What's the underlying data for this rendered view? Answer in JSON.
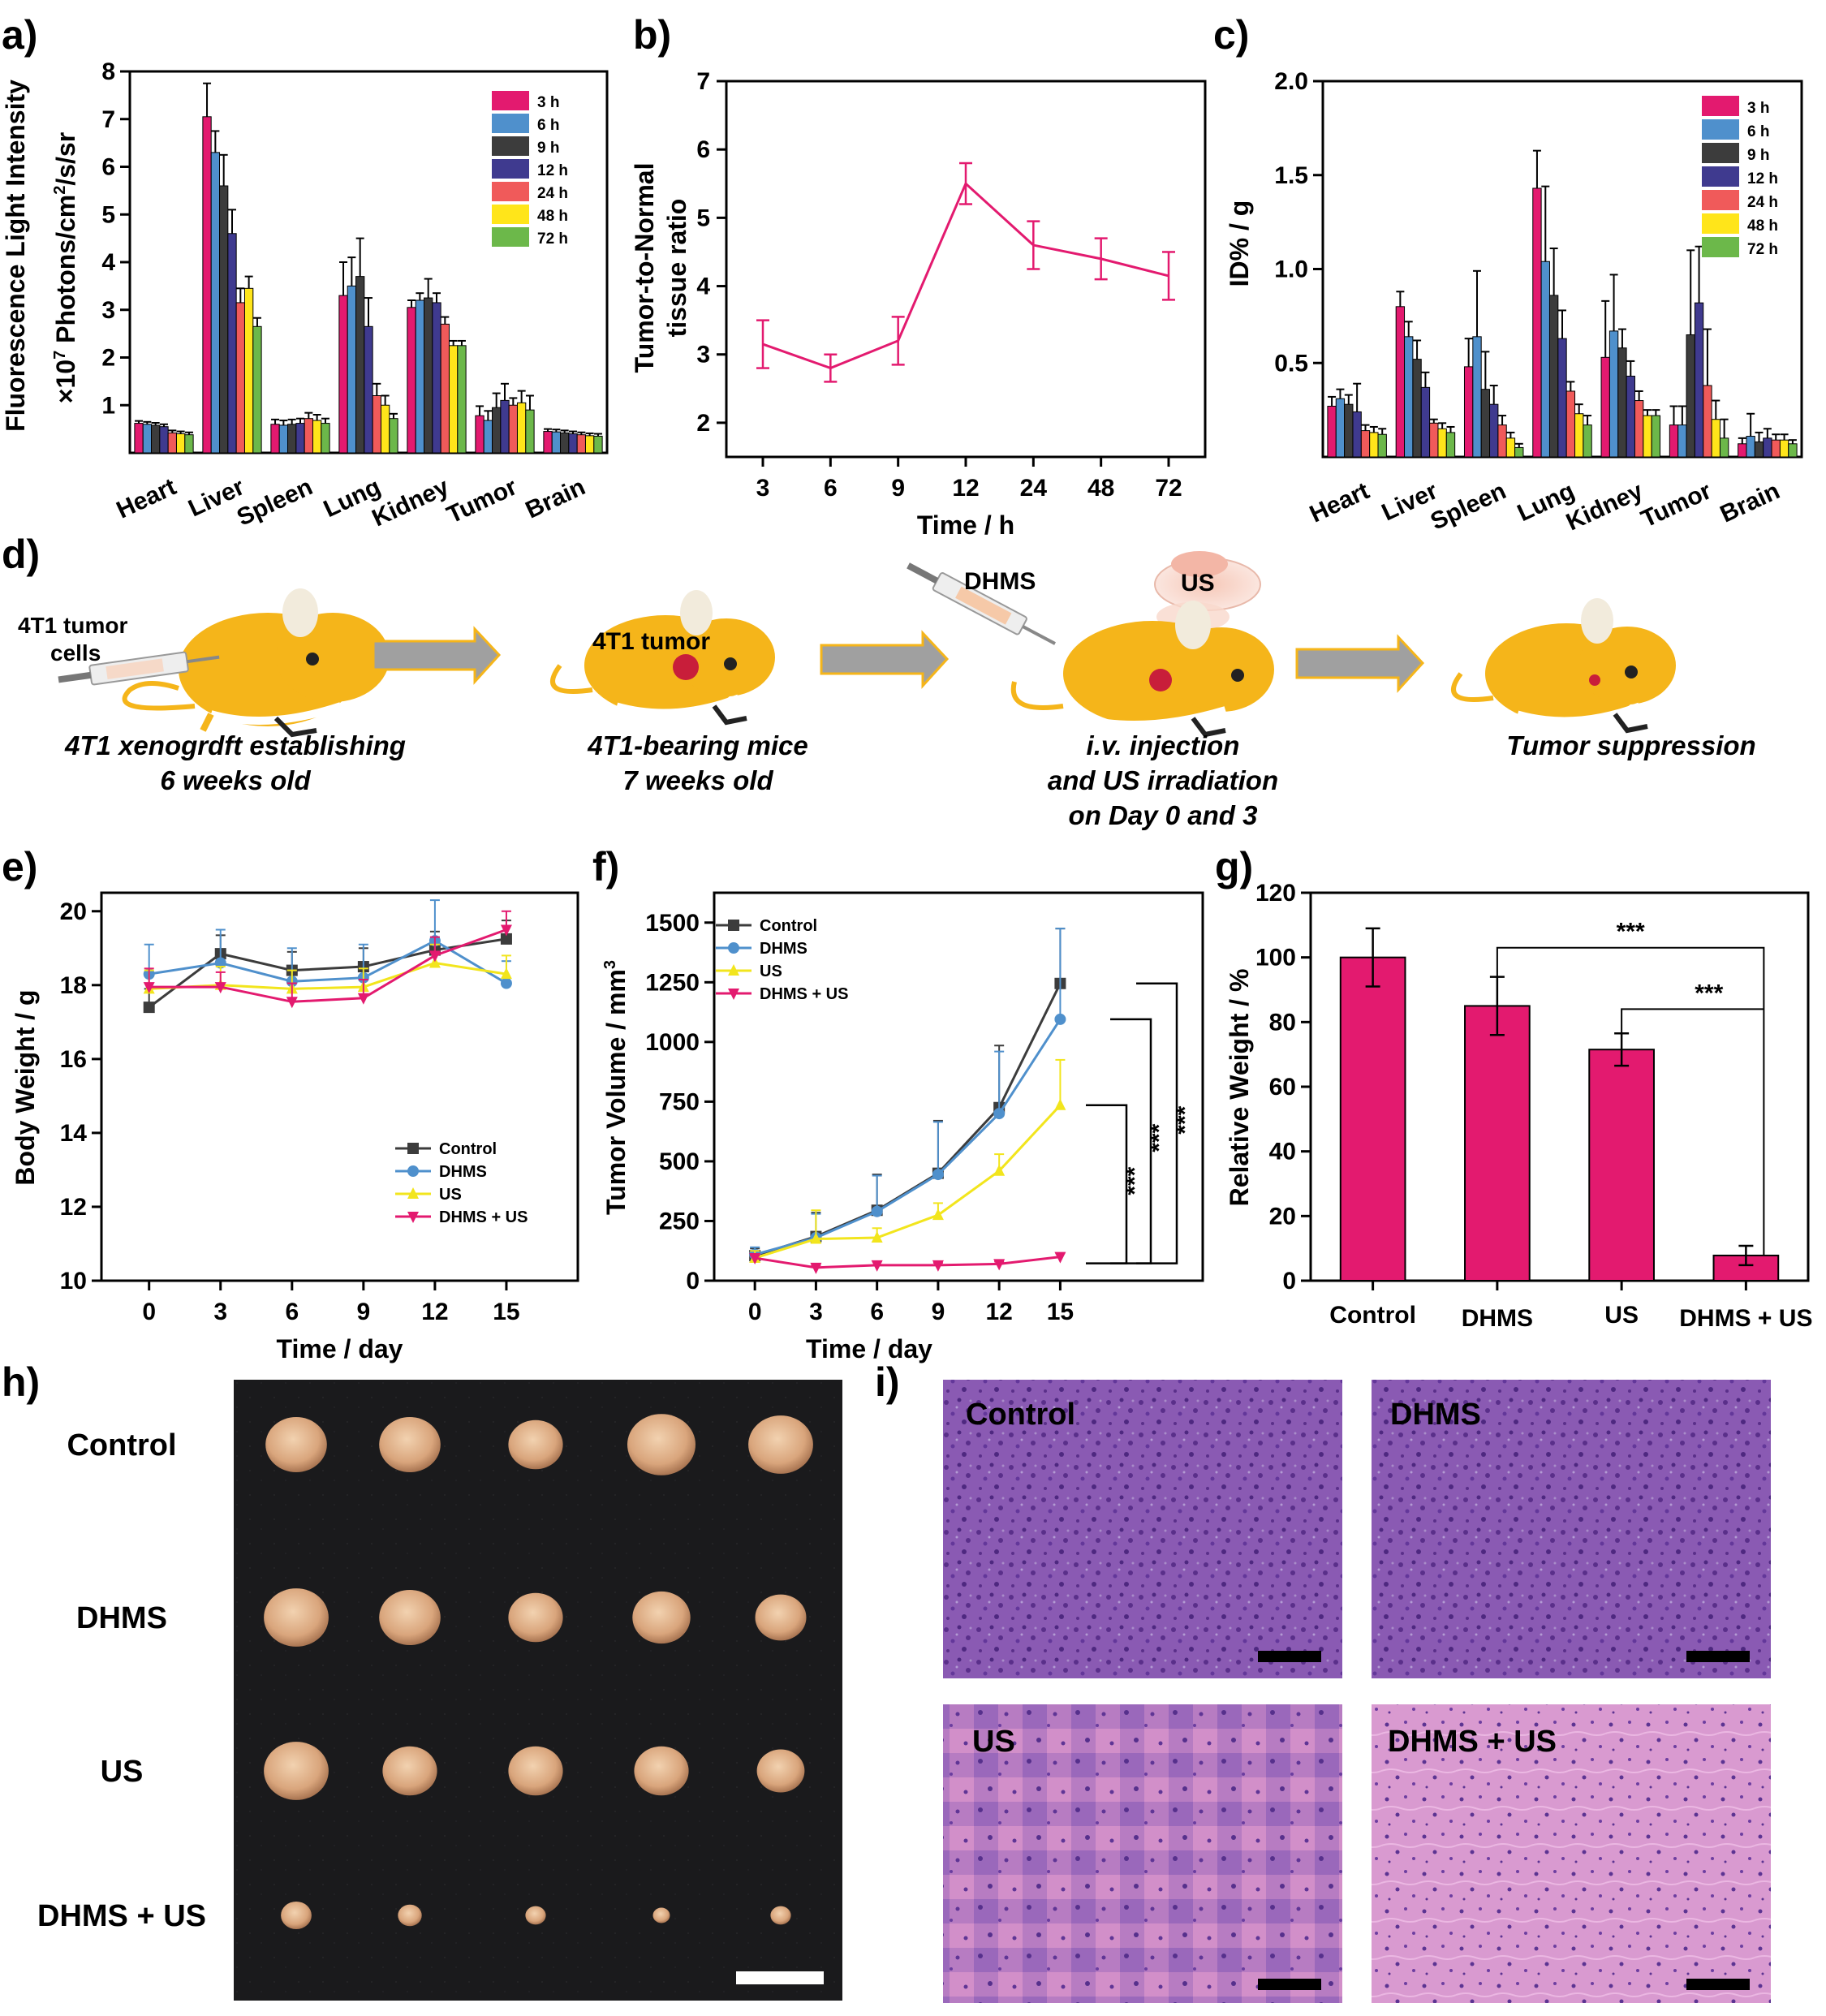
{
  "colors": {
    "h3": "#e31a6f",
    "h6": "#4f90cc",
    "h9": "#3c3c3c",
    "h12": "#3f3a8f",
    "h24": "#f05a5a",
    "h48": "#ffe51a",
    "h72": "#6cb84a",
    "pink": "#e31a6f",
    "control": "#3c3c3c",
    "dhms": "#4f90cc",
    "us": "#f2e51d",
    "mouse": "#f5b51a",
    "arrow": "#a0a0a0",
    "arrowBorder": "#f5b51a",
    "he_purple": "#8c5bb5",
    "he_pink": "#d890c8"
  },
  "panels": {
    "a": "a)",
    "b": "b)",
    "c": "c)",
    "d": "d)",
    "e": "e)",
    "f": "f)",
    "g": "g)",
    "h": "h)",
    "i": "i)"
  },
  "chart_data": [
    {
      "id": "a",
      "type": "bar",
      "categories": [
        "Heart",
        "Liver",
        "Spleen",
        "Lung",
        "Kidney",
        "Tumor",
        "Brain"
      ],
      "ylabel": "Fluorescence Light Intensity",
      "ylabel_unit_main": "Photons/cm",
      "ylabel_unit_sup": "2",
      "ylabel_unit_tail": "/s/sr",
      "ylabel_scale_main": "×10",
      "ylabel_scale_sup": "7",
      "ylim": [
        0,
        8
      ],
      "yticks": [
        1,
        2,
        3,
        4,
        5,
        6,
        7,
        8
      ],
      "legend": "top-right",
      "series": [
        {
          "name": "3 h",
          "color_key": "h3",
          "values": [
            0.62,
            7.05,
            0.6,
            3.3,
            3.05,
            0.78,
            0.45
          ],
          "err": [
            0.05,
            0.7,
            0.1,
            0.7,
            0.15,
            0.2,
            0.05
          ]
        },
        {
          "name": "6 h",
          "color_key": "h6",
          "values": [
            0.6,
            6.3,
            0.58,
            3.5,
            3.2,
            0.68,
            0.44
          ],
          "err": [
            0.05,
            0.45,
            0.1,
            0.6,
            0.15,
            0.2,
            0.05
          ]
        },
        {
          "name": "9 h",
          "color_key": "h9",
          "values": [
            0.58,
            5.6,
            0.6,
            3.7,
            3.25,
            0.95,
            0.42
          ],
          "err": [
            0.05,
            0.65,
            0.1,
            0.8,
            0.4,
            0.3,
            0.05
          ]
        },
        {
          "name": "12 h",
          "color_key": "h12",
          "values": [
            0.55,
            4.6,
            0.62,
            2.65,
            3.15,
            1.1,
            0.4
          ],
          "err": [
            0.05,
            0.5,
            0.1,
            0.6,
            0.2,
            0.35,
            0.05
          ]
        },
        {
          "name": "24 h",
          "color_key": "h24",
          "values": [
            0.42,
            3.15,
            0.72,
            1.2,
            2.7,
            1.0,
            0.38
          ],
          "err": [
            0.05,
            0.3,
            0.12,
            0.25,
            0.15,
            0.15,
            0.05
          ]
        },
        {
          "name": "48 h",
          "color_key": "h48",
          "values": [
            0.4,
            3.45,
            0.68,
            1.0,
            2.25,
            1.05,
            0.36
          ],
          "err": [
            0.05,
            0.25,
            0.12,
            0.2,
            0.1,
            0.25,
            0.05
          ]
        },
        {
          "name": "72 h",
          "color_key": "h72",
          "values": [
            0.38,
            2.65,
            0.62,
            0.72,
            2.25,
            0.9,
            0.35
          ],
          "err": [
            0.05,
            0.18,
            0.1,
            0.1,
            0.1,
            0.3,
            0.05
          ]
        }
      ]
    },
    {
      "id": "b",
      "type": "line",
      "categories": [
        "3",
        "6",
        "9",
        "12",
        "24",
        "48",
        "72"
      ],
      "values": [
        3.15,
        2.8,
        3.2,
        5.5,
        4.6,
        4.4,
        4.15
      ],
      "err": [
        0.35,
        0.2,
        0.35,
        0.3,
        0.35,
        0.3,
        0.35
      ],
      "xlabel": "Time / h",
      "ylabel_line1": "Tumor-to-Normal",
      "ylabel_line2": "tissue ratio",
      "ylim": [
        1.5,
        7
      ],
      "yticks": [
        2,
        3,
        4,
        5,
        6,
        7
      ]
    },
    {
      "id": "c",
      "type": "bar",
      "categories": [
        "Heart",
        "Liver",
        "Spleen",
        "Lung",
        "Kidney",
        "Tumor",
        "Brain"
      ],
      "ylabel": "ID% / g",
      "ylim": [
        0,
        2.0
      ],
      "yticks": [
        "0.5",
        "1.0",
        "1.5",
        "2.0"
      ],
      "legend": "top-right",
      "series": [
        {
          "name": "3 h",
          "color_key": "h3",
          "values": [
            0.27,
            0.8,
            0.48,
            1.43,
            0.53,
            0.17,
            0.07
          ],
          "err": [
            0.05,
            0.08,
            0.15,
            0.2,
            0.3,
            0.1,
            0.03
          ]
        },
        {
          "name": "6 h",
          "color_key": "h6",
          "values": [
            0.31,
            0.64,
            0.64,
            1.04,
            0.67,
            0.17,
            0.11
          ],
          "err": [
            0.05,
            0.08,
            0.35,
            0.4,
            0.3,
            0.1,
            0.12
          ]
        },
        {
          "name": "9 h",
          "color_key": "h9",
          "values": [
            0.28,
            0.52,
            0.36,
            0.86,
            0.58,
            0.65,
            0.08
          ],
          "err": [
            0.05,
            0.1,
            0.2,
            0.25,
            0.1,
            0.45,
            0.05
          ]
        },
        {
          "name": "12 h",
          "color_key": "h12",
          "values": [
            0.24,
            0.37,
            0.28,
            0.63,
            0.43,
            0.82,
            0.1
          ],
          "err": [
            0.15,
            0.08,
            0.1,
            0.15,
            0.08,
            0.3,
            0.05
          ]
        },
        {
          "name": "24 h",
          "color_key": "h24",
          "values": [
            0.14,
            0.18,
            0.17,
            0.35,
            0.3,
            0.38,
            0.09
          ],
          "err": [
            0.03,
            0.02,
            0.05,
            0.05,
            0.05,
            0.3,
            0.03
          ]
        },
        {
          "name": "48 h",
          "color_key": "h48",
          "values": [
            0.13,
            0.15,
            0.1,
            0.23,
            0.22,
            0.2,
            0.09
          ],
          "err": [
            0.03,
            0.03,
            0.03,
            0.05,
            0.03,
            0.1,
            0.03
          ]
        },
        {
          "name": "72 h",
          "color_key": "h72",
          "values": [
            0.12,
            0.13,
            0.05,
            0.17,
            0.22,
            0.1,
            0.07
          ],
          "err": [
            0.03,
            0.03,
            0.02,
            0.05,
            0.03,
            0.1,
            0.02
          ]
        }
      ]
    },
    {
      "id": "e",
      "type": "line",
      "x": [
        0,
        3,
        6,
        9,
        12,
        15
      ],
      "xlabel": "Time / day",
      "ylabel": "Body Weight / g",
      "ylim": [
        10,
        20.5
      ],
      "yticks": [
        10,
        12,
        14,
        16,
        18,
        20
      ],
      "legend": "bottom-right",
      "series": [
        {
          "name": "Control",
          "color_key": "control",
          "marker": "square",
          "values": [
            17.4,
            18.85,
            18.4,
            18.5,
            18.95,
            19.25
          ],
          "err": [
            0.5,
            0.5,
            0.5,
            0.5,
            0.5,
            0.5
          ]
        },
        {
          "name": "DHMS",
          "color_key": "dhms",
          "marker": "circle",
          "values": [
            18.3,
            18.6,
            18.1,
            18.2,
            19.2,
            18.05
          ],
          "err": [
            0.8,
            0.9,
            0.9,
            0.9,
            1.1,
            0.6
          ]
        },
        {
          "name": "US",
          "color_key": "us",
          "marker": "triangle",
          "values": [
            17.9,
            18.0,
            17.9,
            17.95,
            18.6,
            18.3
          ],
          "err": [
            0.5,
            0.5,
            0.5,
            0.5,
            0.5,
            0.5
          ]
        },
        {
          "name": "DHMS + US",
          "color_key": "pink",
          "marker": "tri-down",
          "values": [
            17.95,
            17.95,
            17.55,
            17.65,
            18.8,
            19.5
          ],
          "err": [
            0.5,
            0.4,
            0.5,
            0.5,
            0.5,
            0.5
          ]
        }
      ]
    },
    {
      "id": "f",
      "type": "line",
      "x": [
        0,
        3,
        6,
        9,
        12,
        15
      ],
      "xlabel": "Time / day",
      "ylabel_main": "Tumor Volume / mm",
      "ylabel_sup": "3",
      "ylim": [
        0,
        1625
      ],
      "yticks": [
        0,
        250,
        500,
        750,
        1000,
        1250,
        1500
      ],
      "legend": "top-left",
      "significance": "***",
      "series": [
        {
          "name": "Control",
          "color_key": "control",
          "marker": "square",
          "values": [
            105,
            185,
            295,
            450,
            725,
            1245
          ],
          "err": [
            30,
            100,
            150,
            220,
            260,
            230
          ]
        },
        {
          "name": "DHMS",
          "color_key": "dhms",
          "marker": "circle",
          "values": [
            110,
            180,
            290,
            445,
            700,
            1095
          ],
          "err": [
            30,
            100,
            150,
            220,
            260,
            380
          ]
        },
        {
          "name": "US",
          "color_key": "us",
          "marker": "triangle",
          "values": [
            95,
            175,
            180,
            275,
            460,
            735
          ],
          "err": [
            30,
            120,
            40,
            50,
            70,
            190
          ]
        },
        {
          "name": "DHMS + US",
          "color_key": "pink",
          "marker": "tri-down",
          "values": [
            95,
            55,
            65,
            65,
            70,
            100
          ],
          "err": [
            10,
            10,
            15,
            10,
            10,
            15
          ]
        }
      ]
    },
    {
      "id": "g",
      "type": "bar",
      "categories": [
        "Control",
        "DHMS",
        "US",
        "DHMS + US"
      ],
      "values": [
        100,
        85,
        71.5,
        7.8
      ],
      "err": [
        9,
        9,
        5,
        3
      ],
      "ylabel": "Relative Weight / %",
      "ylim": [
        0,
        120
      ],
      "yticks": [
        0,
        20,
        40,
        60,
        80,
        100,
        120
      ],
      "significance": "***"
    }
  ],
  "schematic": {
    "label_cells": "4T1 tumor\ncells",
    "label_tumor": "4T1 tumor",
    "label_dhms": "DHMS",
    "label_us": "US",
    "steps": [
      "4T1 xenogrdft establishing\n6 weeks old",
      "4T1-bearing mice\n7 weeks old",
      "i.v. injection\nand US irradiation\non Day 0 and 3",
      "Tumor  suppression"
    ]
  },
  "photo": {
    "rows": [
      "Control",
      "DHMS",
      "US",
      "DHMS + US"
    ],
    "tumor_sizes_relative": [
      [
        0.9,
        0.9,
        0.8,
        1.0,
        0.95
      ],
      [
        0.95,
        0.9,
        0.8,
        0.85,
        0.75
      ],
      [
        0.95,
        0.8,
        0.8,
        0.8,
        0.7
      ],
      [
        0.45,
        0.35,
        0.3,
        0.25,
        0.3
      ]
    ]
  },
  "histology": {
    "labels": [
      "Control",
      "DHMS",
      "US",
      "DHMS + US"
    ]
  }
}
